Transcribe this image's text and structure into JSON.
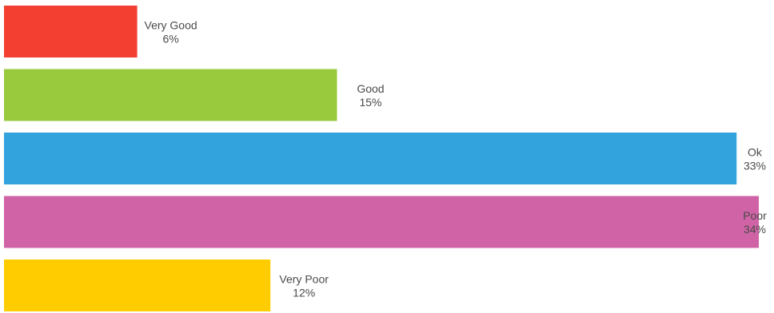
{
  "chart_data": {
    "type": "bar",
    "orientation": "horizontal",
    "categories": [
      "Very Good",
      "Good",
      "Ok",
      "Poor",
      "Very Poor"
    ],
    "values": [
      6,
      15,
      33,
      34,
      12
    ],
    "value_labels": [
      "6%",
      "15%",
      "33%",
      "34%",
      "12%"
    ],
    "colors": [
      "#f23f32",
      "#99c93c",
      "#33a3de",
      "#d063a6",
      "#ffcc00"
    ],
    "xlim": [
      0,
      34
    ],
    "grid": false,
    "legend": "none"
  }
}
